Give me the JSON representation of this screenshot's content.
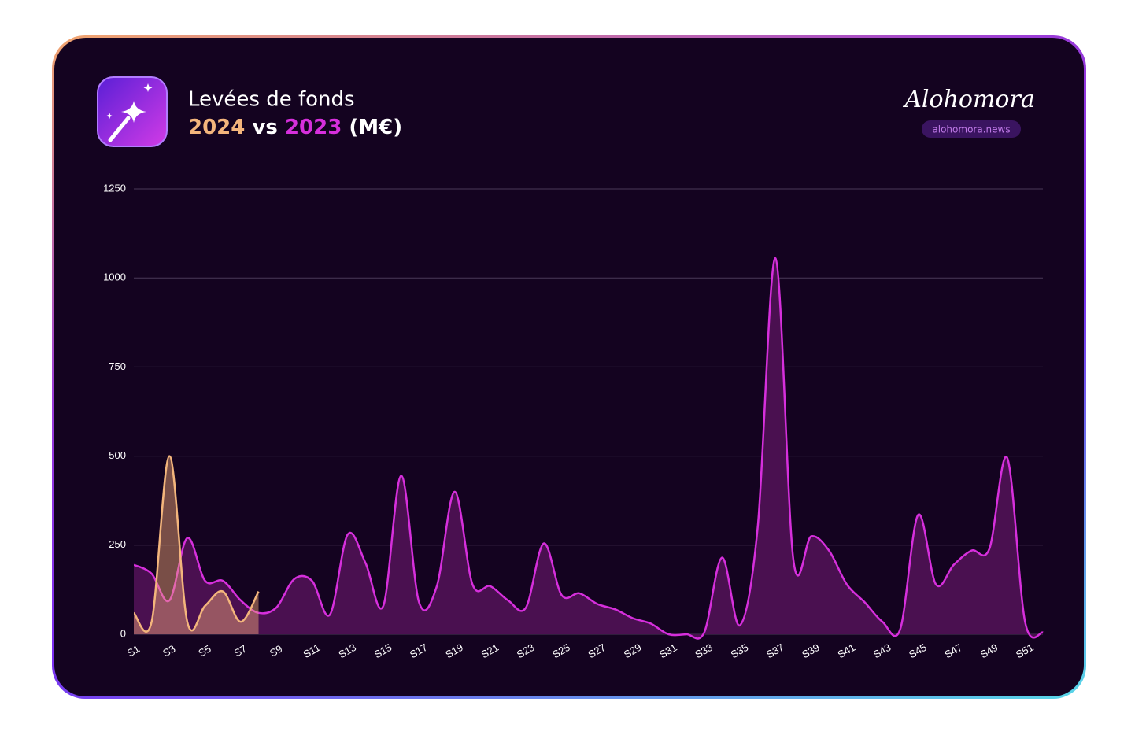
{
  "chart_data": {
    "type": "area",
    "title": "Levées de fonds",
    "subtitle": {
      "joiner": "vs",
      "unit": "(M€)"
    },
    "brand": {
      "name": "Alohomora",
      "url": "alohomora.news"
    },
    "categories": [
      "S1",
      null,
      "S3",
      null,
      "S5",
      null,
      "S7",
      null,
      "S9",
      null,
      "S11",
      null,
      "S13",
      null,
      "S15",
      null,
      "S17",
      null,
      "S19",
      null,
      "S21",
      null,
      "S23",
      null,
      "S25",
      null,
      "S27",
      null,
      "S29",
      null,
      "S31",
      null,
      "S33",
      null,
      "S35",
      null,
      "S37",
      null,
      "S39",
      null,
      "S41",
      null,
      "S43",
      null,
      "S45",
      null,
      "S47",
      null,
      "S49",
      null,
      "S51",
      null
    ],
    "series": [
      {
        "name": "2024",
        "color": "#f3b57c",
        "fill": "rgba(243,170,120,0.45)",
        "values": [
          60,
          35,
          500,
          35,
          80,
          120,
          35,
          120,
          null,
          null,
          null,
          null,
          null,
          null,
          null,
          null,
          null,
          null,
          null,
          null,
          null,
          null,
          null,
          null,
          null,
          null,
          null,
          null,
          null,
          null,
          null,
          null,
          null,
          null,
          null,
          null,
          null,
          null,
          null,
          null,
          null,
          null,
          null,
          null,
          null,
          null,
          null,
          null,
          null,
          null,
          null,
          null
        ]
      },
      {
        "name": "2023",
        "color": "#d62fdc",
        "fill": "#4a1050",
        "values": [
          195,
          170,
          95,
          270,
          150,
          150,
          95,
          60,
          75,
          155,
          150,
          55,
          280,
          200,
          80,
          445,
          90,
          135,
          400,
          140,
          135,
          95,
          75,
          255,
          110,
          115,
          85,
          70,
          45,
          30,
          0,
          0,
          5,
          215,
          25,
          300,
          1055,
          210,
          275,
          235,
          140,
          90,
          35,
          15,
          335,
          140,
          195,
          235,
          240,
          495,
          35,
          5
        ]
      }
    ],
    "ylim": [
      0,
      1250
    ],
    "yticks": [
      0,
      250,
      500,
      750,
      1000,
      1250
    ],
    "grid": true
  }
}
